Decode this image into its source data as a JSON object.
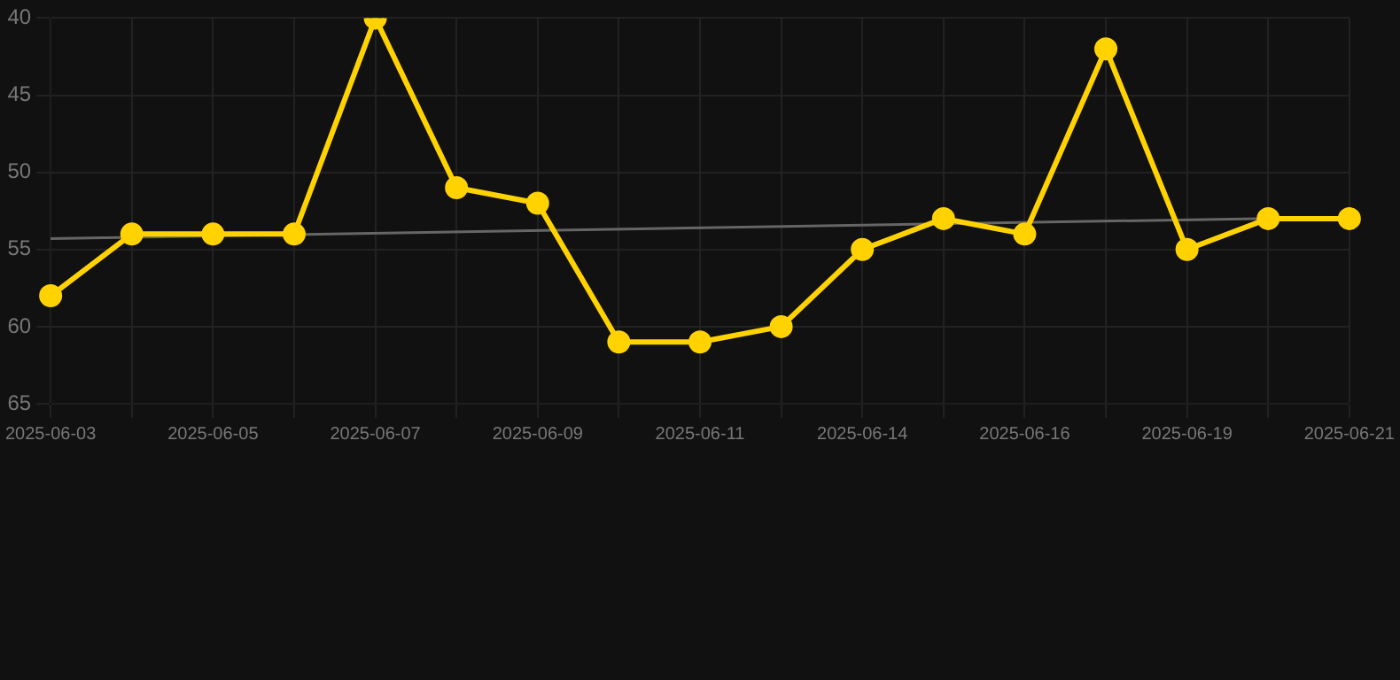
{
  "chart_data": {
    "type": "line",
    "categories": [
      "2025-06-03",
      null,
      "2025-06-05",
      null,
      "2025-06-07",
      null,
      "2025-06-09",
      null,
      "2025-06-11",
      null,
      "2025-06-14",
      null,
      "2025-06-16",
      null,
      "2025-06-19",
      null,
      "2025-06-21"
    ],
    "series": [
      {
        "color": "#ffd200",
        "values": [
          58,
          54,
          54,
          54,
          40,
          51,
          52,
          61,
          61,
          60,
          55,
          53,
          54,
          42,
          55,
          53,
          53
        ],
        "marker": "circle"
      },
      {
        "type": "line",
        "color": "#666666",
        "values": [
          54.3,
          null,
          null,
          null,
          null,
          null,
          null,
          null,
          null,
          null,
          null,
          null,
          null,
          null,
          null,
          null,
          52.9
        ],
        "marker": "none"
      }
    ],
    "ylim": [
      65,
      40
    ],
    "yticks": [
      40,
      45,
      50,
      55,
      60,
      65
    ],
    "grid": true,
    "legend": false
  }
}
